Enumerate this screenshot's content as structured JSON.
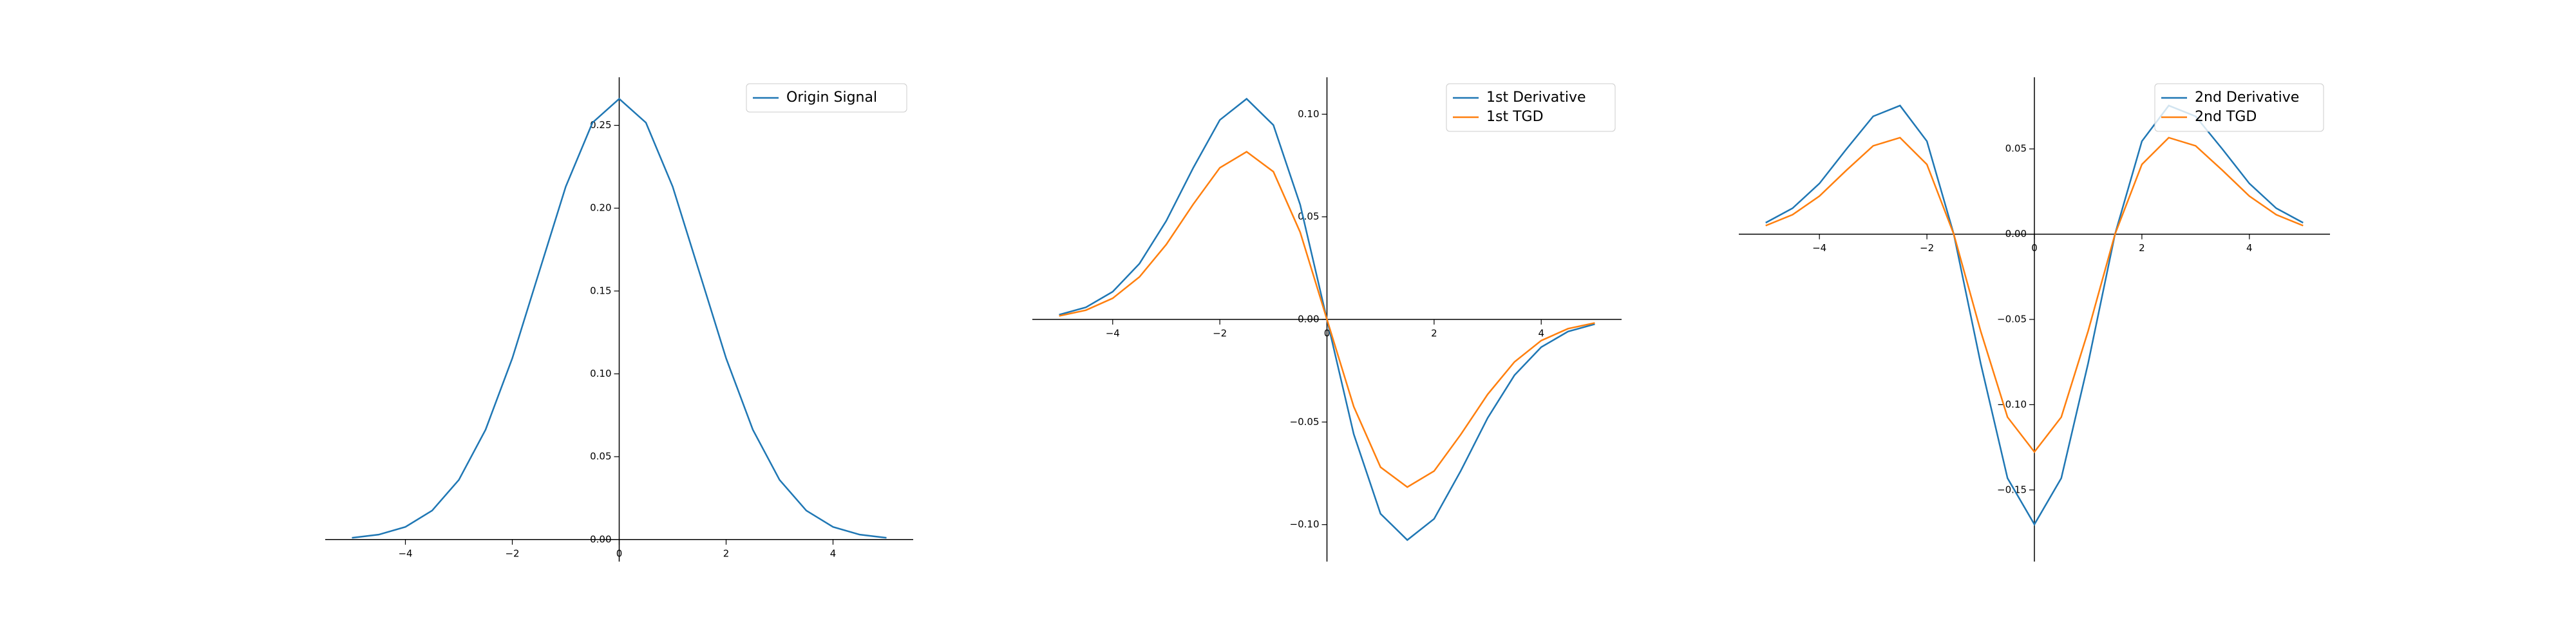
{
  "chart_data": [
    {
      "type": "line",
      "legend": "upper right",
      "xlim": [
        -5.5,
        5.5
      ],
      "ylim": [
        -0.0133,
        0.279
      ],
      "xticks": [
        {
          "value": -4,
          "label": "−4"
        },
        {
          "value": -2,
          "label": "−2"
        },
        0,
        2,
        4
      ],
      "yticks": [
        {
          "value": 0,
          "label": "0.00"
        },
        0.05,
        {
          "value": 0.1,
          "label": "0.10"
        },
        0.15,
        {
          "value": 0.2,
          "label": "0.20"
        },
        0.25
      ],
      "x": [
        -5,
        -4.5,
        -4,
        -3.5,
        -3,
        -2.5,
        -2,
        -1.5,
        -1,
        -0.5,
        0,
        0.5,
        1,
        1.5,
        2,
        2.5,
        3,
        3.5,
        4,
        4.5,
        5
      ],
      "series": [
        {
          "name": "Origin Signal",
          "color": "#1f77b4",
          "values": [
            0.00103,
            0.00296,
            0.0076,
            0.0175,
            0.036,
            0.0663,
            0.1094,
            0.1613,
            0.213,
            0.2516,
            0.266,
            0.2516,
            0.213,
            0.1613,
            0.1094,
            0.0663,
            0.036,
            0.0175,
            0.0076,
            0.00296,
            0.00103
          ]
        }
      ]
    },
    {
      "type": "line",
      "legend": "upper right",
      "xlim": [
        -5.5,
        5.5
      ],
      "ylim": [
        -0.118,
        0.118
      ],
      "xticks": [
        {
          "value": -4,
          "label": "−4"
        },
        {
          "value": -2,
          "label": "−2"
        },
        0,
        2,
        4
      ],
      "yticks": [
        {
          "value": -0.1,
          "label": "−0.10"
        },
        {
          "value": -0.05,
          "label": "−0.05"
        },
        {
          "value": 0,
          "label": "0.00"
        },
        0.05,
        {
          "value": 0.1,
          "label": "0.10"
        }
      ],
      "x": [
        -5,
        -4.5,
        -4,
        -3.5,
        -3,
        -2.5,
        -2,
        -1.5,
        -1,
        -0.5,
        0,
        0.5,
        1,
        1.5,
        2,
        2.5,
        3,
        3.5,
        4,
        4.5,
        5
      ],
      "series": [
        {
          "name": "1st Derivative",
          "color": "#1f77b4",
          "values": [
            0.0023,
            0.0059,
            0.0135,
            0.0272,
            0.048,
            0.0737,
            0.0972,
            0.1075,
            0.0947,
            0.0559,
            0,
            -0.0559,
            -0.0947,
            -0.1075,
            -0.0972,
            -0.0737,
            -0.048,
            -0.0272,
            -0.0135,
            -0.0059,
            -0.0023
          ]
        },
        {
          "name": "1st TGD",
          "color": "#ff7f0e",
          "values": [
            0.0017,
            0.0045,
            0.0103,
            0.0207,
            0.0365,
            0.056,
            0.0739,
            0.0817,
            0.072,
            0.0425,
            0,
            -0.0425,
            -0.072,
            -0.0817,
            -0.0739,
            -0.056,
            -0.0365,
            -0.0207,
            -0.0103,
            -0.0045,
            -0.0017
          ]
        }
      ]
    },
    {
      "type": "line",
      "legend": "upper right",
      "xlim": [
        -5.5,
        5.5
      ],
      "ylim": [
        -0.192,
        0.092
      ],
      "xticks": [
        {
          "value": -4,
          "label": "−4"
        },
        {
          "value": -2,
          "label": "−2"
        },
        0,
        2,
        4
      ],
      "yticks": [
        {
          "value": -0.15,
          "label": "−0.15"
        },
        {
          "value": -0.1,
          "label": "−0.10"
        },
        {
          "value": -0.05,
          "label": "−0.05"
        },
        {
          "value": 0,
          "label": "0.00"
        },
        0.05
      ],
      "x": [
        -5,
        -4.5,
        -4,
        -3.5,
        -3,
        -2.5,
        -2,
        -1.5,
        -1,
        -0.5,
        0,
        0.5,
        1,
        1.5,
        2,
        2.5,
        3,
        3.5,
        4,
        4.5,
        5
      ],
      "series": [
        {
          "name": "2nd Derivative",
          "color": "#1f77b4",
          "values": [
            0.0067,
            0.0152,
            0.0297,
            0.0498,
            0.0691,
            0.0754,
            0.0545,
            0,
            -0.0757,
            -0.1431,
            -0.1702,
            -0.1431,
            -0.0757,
            0,
            0.0545,
            0.0754,
            0.0691,
            0.0498,
            0.0297,
            0.0152,
            0.0067
          ]
        },
        {
          "name": "2nd TGD",
          "color": "#ff7f0e",
          "values": [
            0.005,
            0.0114,
            0.0223,
            0.0374,
            0.0518,
            0.0566,
            0.0409,
            0,
            -0.0568,
            -0.1073,
            -0.1277,
            -0.1073,
            -0.0568,
            0,
            0.0409,
            0.0566,
            0.0518,
            0.0374,
            0.0223,
            0.0114,
            0.005
          ]
        }
      ]
    }
  ]
}
